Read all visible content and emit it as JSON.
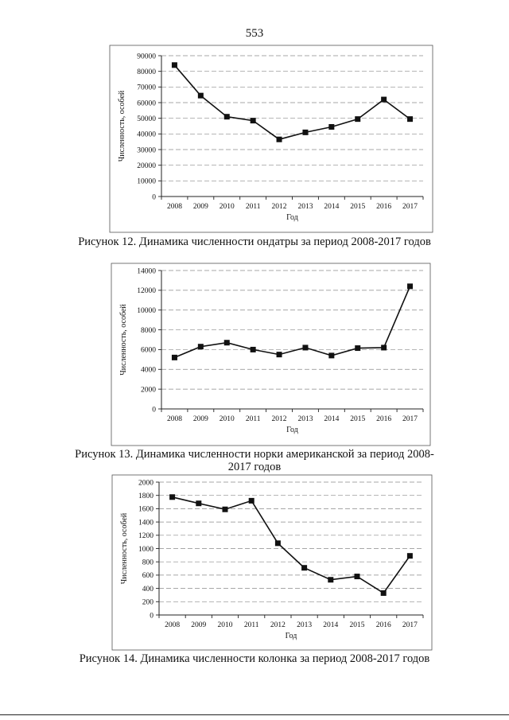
{
  "page": {
    "number": "553"
  },
  "figures": [
    {
      "caption_lines": [
        "Рисунок 12. Динамика численности ондатры за период 2008-2017 годов"
      ]
    },
    {
      "caption_lines": [
        "Рисунок 13. Динамика численности норки американской за период 2008-",
        "2017 годов"
      ]
    },
    {
      "caption_lines": [
        "Рисунок 14. Динамика численности колонка за период 2008-2017 годов"
      ]
    }
  ],
  "chart_data": [
    {
      "type": "line",
      "xlabel": "Год",
      "ylabel": "Численность, особей",
      "categories": [
        "2008",
        "2009",
        "2010",
        "2011",
        "2012",
        "2013",
        "2014",
        "2015",
        "2016",
        "2017"
      ],
      "values": [
        84000,
        64500,
        51000,
        48500,
        36500,
        41000,
        44500,
        49500,
        62000,
        49500
      ],
      "ylim": [
        0,
        90000
      ],
      "yticks": [
        0,
        10000,
        20000,
        30000,
        40000,
        50000,
        60000,
        70000,
        80000,
        90000
      ],
      "grid": true,
      "marker": "square"
    },
    {
      "type": "line",
      "xlabel": "Год",
      "ylabel": "Численность, особей",
      "categories": [
        "2008",
        "2009",
        "2010",
        "2011",
        "2012",
        "2013",
        "2014",
        "2015",
        "2016",
        "2017"
      ],
      "values": [
        5200,
        6300,
        6700,
        6000,
        5500,
        6200,
        5400,
        6150,
        6200,
        12400
      ],
      "ylim": [
        0,
        14000
      ],
      "yticks": [
        0,
        2000,
        4000,
        6000,
        8000,
        10000,
        12000,
        14000
      ],
      "grid": true,
      "marker": "square"
    },
    {
      "type": "line",
      "xlabel": "Год",
      "ylabel": "Численность, особей",
      "categories": [
        "2008",
        "2009",
        "2010",
        "2011",
        "2012",
        "2013",
        "2014",
        "2015",
        "2016",
        "2017"
      ],
      "values": [
        1775,
        1680,
        1590,
        1720,
        1080,
        710,
        530,
        580,
        330,
        890
      ],
      "ylim": [
        0,
        2000
      ],
      "yticks": [
        0,
        200,
        400,
        600,
        800,
        1000,
        1200,
        1400,
        1600,
        1800,
        2000
      ],
      "grid": true,
      "marker": "square"
    }
  ]
}
